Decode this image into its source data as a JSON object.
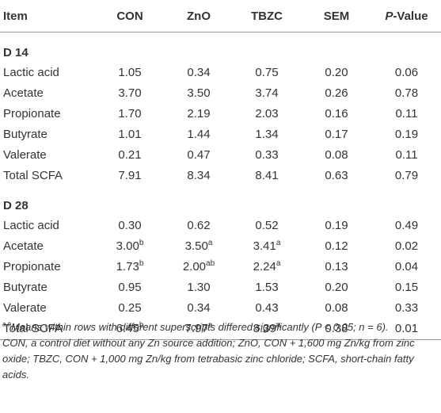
{
  "header": {
    "item": "Item",
    "con": "CON",
    "zno": "ZnO",
    "tbzc": "TBZC",
    "sem": "SEM",
    "p_prefix": "P",
    "p_suffix": "-Value"
  },
  "sections": [
    {
      "title": "D 14",
      "rows": [
        {
          "label": "Lactic acid",
          "cells": [
            {
              "v": "1.05",
              "s": ""
            },
            {
              "v": "0.34",
              "s": ""
            },
            {
              "v": "0.75",
              "s": ""
            },
            {
              "v": "0.20",
              "s": ""
            },
            {
              "v": "0.06",
              "s": ""
            }
          ]
        },
        {
          "label": "Acetate",
          "cells": [
            {
              "v": "3.70",
              "s": ""
            },
            {
              "v": "3.50",
              "s": ""
            },
            {
              "v": "3.74",
              "s": ""
            },
            {
              "v": "0.26",
              "s": ""
            },
            {
              "v": "0.78",
              "s": ""
            }
          ]
        },
        {
          "label": "Propionate",
          "cells": [
            {
              "v": "1.70",
              "s": ""
            },
            {
              "v": "2.19",
              "s": ""
            },
            {
              "v": "2.03",
              "s": ""
            },
            {
              "v": "0.16",
              "s": ""
            },
            {
              "v": "0.11",
              "s": ""
            }
          ]
        },
        {
          "label": "Butyrate",
          "cells": [
            {
              "v": "1.01",
              "s": ""
            },
            {
              "v": "1.44",
              "s": ""
            },
            {
              "v": "1.34",
              "s": ""
            },
            {
              "v": "0.17",
              "s": ""
            },
            {
              "v": "0.19",
              "s": ""
            }
          ]
        },
        {
          "label": "Valerate",
          "cells": [
            {
              "v": "0.21",
              "s": ""
            },
            {
              "v": "0.47",
              "s": ""
            },
            {
              "v": "0.33",
              "s": ""
            },
            {
              "v": "0.08",
              "s": ""
            },
            {
              "v": "0.11",
              "s": ""
            }
          ]
        },
        {
          "label": "Total SCFA",
          "cells": [
            {
              "v": "7.91",
              "s": ""
            },
            {
              "v": "8.34",
              "s": ""
            },
            {
              "v": "8.41",
              "s": ""
            },
            {
              "v": "0.63",
              "s": ""
            },
            {
              "v": "0.79",
              "s": ""
            }
          ]
        }
      ]
    },
    {
      "title": "D 28",
      "rows": [
        {
          "label": "Lactic acid",
          "cells": [
            {
              "v": "0.30",
              "s": ""
            },
            {
              "v": "0.62",
              "s": ""
            },
            {
              "v": "0.52",
              "s": ""
            },
            {
              "v": "0.19",
              "s": ""
            },
            {
              "v": "0.49",
              "s": ""
            }
          ]
        },
        {
          "label": "Acetate",
          "cells": [
            {
              "v": "3.00",
              "s": "b"
            },
            {
              "v": "3.50",
              "s": "a"
            },
            {
              "v": "3.41",
              "s": "a"
            },
            {
              "v": "0.12",
              "s": ""
            },
            {
              "v": "0.02",
              "s": ""
            }
          ]
        },
        {
          "label": "Propionate",
          "cells": [
            {
              "v": "1.73",
              "s": "b"
            },
            {
              "v": "2.00",
              "s": "ab"
            },
            {
              "v": "2.24",
              "s": "a"
            },
            {
              "v": "0.13",
              "s": ""
            },
            {
              "v": "0.04",
              "s": ""
            }
          ]
        },
        {
          "label": "Butyrate",
          "cells": [
            {
              "v": "0.95",
              "s": ""
            },
            {
              "v": "1.30",
              "s": ""
            },
            {
              "v": "1.53",
              "s": ""
            },
            {
              "v": "0.20",
              "s": ""
            },
            {
              "v": "0.15",
              "s": ""
            }
          ]
        },
        {
          "label": "Valerate",
          "cells": [
            {
              "v": "0.25",
              "s": ""
            },
            {
              "v": "0.34",
              "s": ""
            },
            {
              "v": "0.43",
              "s": ""
            },
            {
              "v": "0.08",
              "s": ""
            },
            {
              "v": "0.33",
              "s": ""
            }
          ]
        },
        {
          "label": "Total SCFA",
          "cells": [
            {
              "v": "6.45",
              "s": "b"
            },
            {
              "v": "7.97",
              "s": "a"
            },
            {
              "v": "8.39",
              "s": "a"
            },
            {
              "v": "0.38",
              "s": ""
            },
            {
              "v": "0.01",
              "s": ""
            }
          ]
        }
      ]
    }
  ],
  "footnotes": {
    "note1_sup": "a,b",
    "note1": "Means within rows with different superscripts differed significantly (P < 0.05; n = 6).",
    "note2": "CON, a control diet without any Zn source addition; ZnO, CON + 1,600 mg Zn/kg from zinc oxide; TBZC, CON + 1,000 mg Zn/kg from tetrabasic zinc chloride; SCFA, short-chain fatty acids."
  }
}
